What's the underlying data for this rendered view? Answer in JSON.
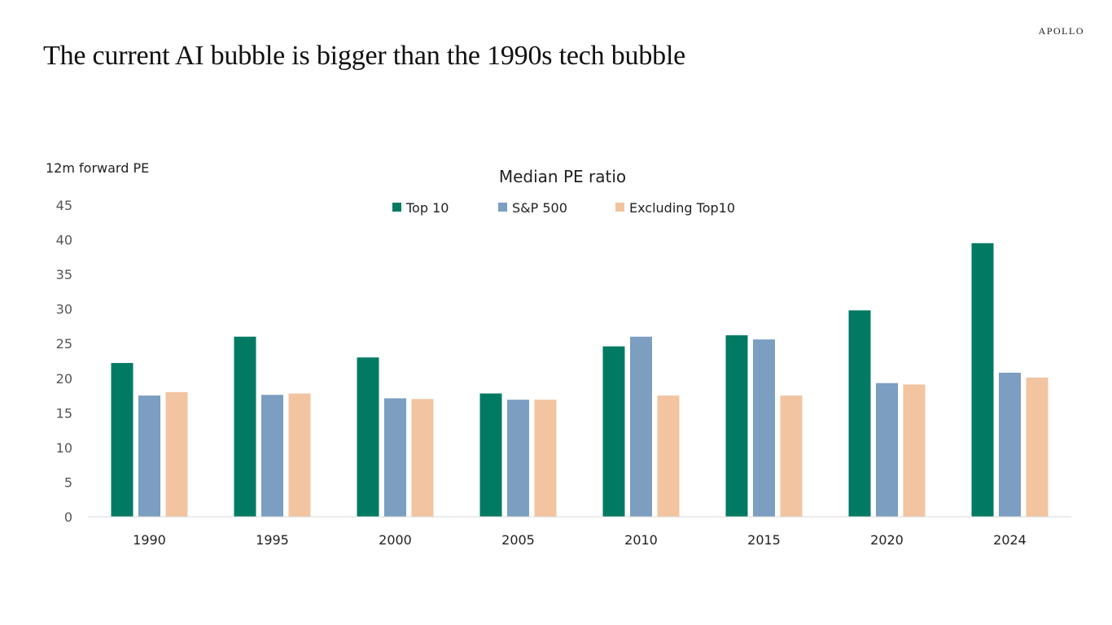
{
  "brand": "APOLLO",
  "headline": "The current AI bubble is bigger than the 1990s tech bubble",
  "chart_data": {
    "type": "bar",
    "title": "Median PE ratio",
    "ylabel": "12m forward PE",
    "xlabel": "",
    "ylim": [
      0,
      45
    ],
    "yticks": [
      0,
      5,
      10,
      15,
      20,
      25,
      30,
      35,
      40,
      45
    ],
    "grid": false,
    "legend_position": "top-center",
    "categories": [
      "1990",
      "1995",
      "2000",
      "2005",
      "2010",
      "2015",
      "2020",
      "2024"
    ],
    "series": [
      {
        "name": "Top 10",
        "color": "#007a62",
        "values": [
          22.2,
          26.0,
          23.0,
          17.8,
          24.6,
          26.2,
          29.8,
          39.5
        ]
      },
      {
        "name": "S&P 500",
        "color": "#7b9ec1",
        "values": [
          17.5,
          17.6,
          17.1,
          16.9,
          26.0,
          25.6,
          19.3,
          20.8
        ]
      },
      {
        "name": "Excluding Top10",
        "color": "#f2c4a0",
        "values": [
          18.0,
          17.8,
          17.0,
          16.9,
          17.5,
          17.5,
          19.1,
          20.1
        ]
      }
    ]
  }
}
